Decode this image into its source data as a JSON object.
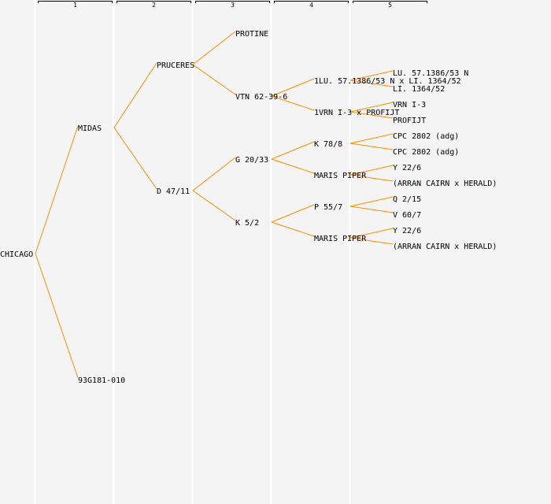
{
  "columns": [
    "1",
    "2",
    "3",
    "4",
    "5"
  ],
  "colors": {
    "background": "#f4f4f4",
    "separator": "#ffffff",
    "edge": "#ff8c00",
    "text": "#000000"
  },
  "tree": {
    "label": "CHICAGO",
    "children": [
      {
        "label": "MIDAS",
        "children": [
          {
            "label": "PRUCERES",
            "children": [
              {
                "label": "PROTINE",
                "children": []
              },
              {
                "label": "VTN 62-39-6",
                "children": [
                  {
                    "label": "1LU. 57.1386/53 N x LI. 1364/52",
                    "children": [
                      {
                        "label": "LU. 57.1386/53 N",
                        "children": []
                      },
                      {
                        "label": "LI. 1364/52",
                        "children": []
                      }
                    ]
                  },
                  {
                    "label": "1VRN I-3 x PROFIJT",
                    "children": [
                      {
                        "label": "VRN I-3",
                        "children": []
                      },
                      {
                        "label": "PROFIJT",
                        "children": []
                      }
                    ]
                  }
                ]
              }
            ]
          },
          {
            "label": "D 47/11",
            "children": [
              {
                "label": "G 20/33",
                "children": [
                  {
                    "label": "K 78/8",
                    "children": [
                      {
                        "label": "CPC 2802 (adg)",
                        "children": []
                      },
                      {
                        "label": "CPC 2802 (adg)",
                        "children": []
                      }
                    ]
                  },
                  {
                    "label": "MARIS PIPER",
                    "children": [
                      {
                        "label": "Y 22/6",
                        "children": []
                      },
                      {
                        "label": "(ARRAN CAIRN x HERALD)",
                        "children": []
                      }
                    ]
                  }
                ]
              },
              {
                "label": "K 5/2",
                "children": [
                  {
                    "label": "P 55/7",
                    "children": [
                      {
                        "label": "Q 2/15",
                        "children": []
                      },
                      {
                        "label": "V 60/7",
                        "children": []
                      }
                    ]
                  },
                  {
                    "label": "MARIS PIPER",
                    "children": [
                      {
                        "label": "Y 22/6",
                        "children": []
                      },
                      {
                        "label": "(ARRAN CAIRN x HERALD)",
                        "children": []
                      }
                    ]
                  }
                ]
              }
            ]
          }
        ]
      },
      {
        "label": "93G181-010",
        "children": []
      }
    ]
  }
}
